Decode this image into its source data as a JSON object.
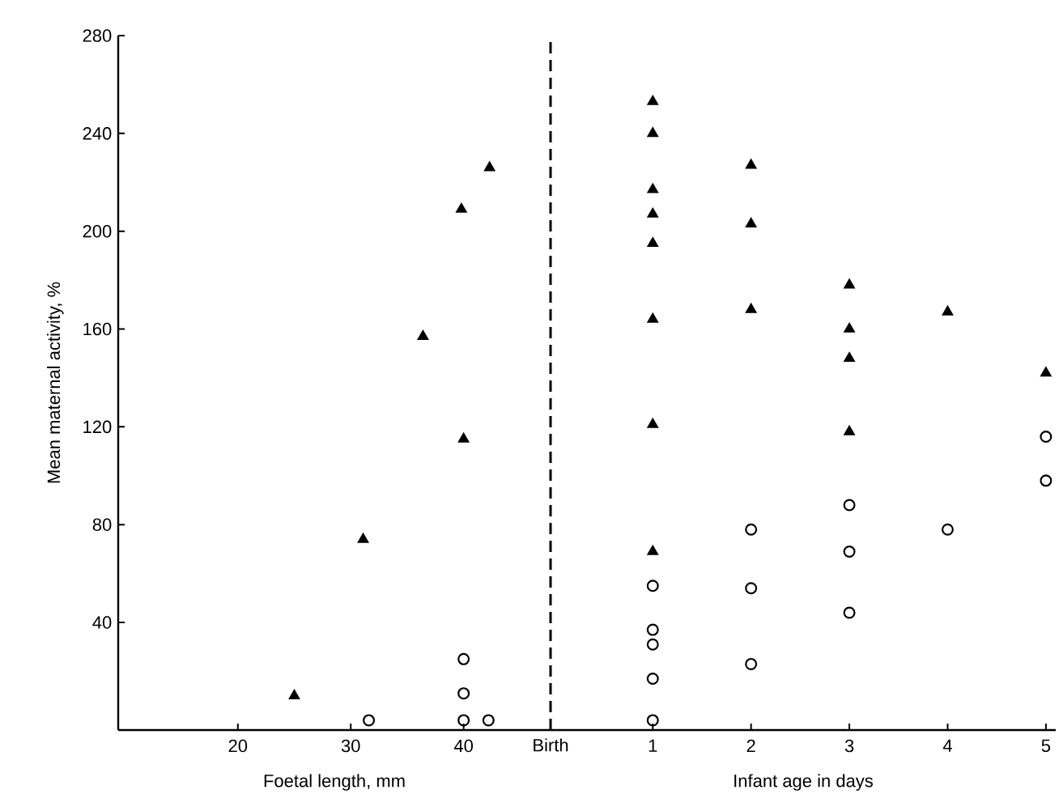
{
  "chart_data": [
    {
      "type": "scatter",
      "xlabel": "Foetal length, mm",
      "ylabel": "Mean maternal activity, %",
      "xlim": [
        9.4,
        47.7
      ],
      "xticks": [
        20,
        30,
        40
      ],
      "ylim": [
        -4,
        280
      ],
      "yticks": [
        40,
        80,
        120,
        160,
        200,
        240,
        280
      ],
      "ref_lines": [
        {
          "axis": "x",
          "value": 47.7,
          "label": "Birth",
          "line_style": "dashed",
          "color": "#000000"
        }
      ],
      "series": [
        {
          "color": "#000000",
          "marker": "triangle",
          "x": [
            25,
            31.1,
            36.4,
            40,
            39.8,
            42.3
          ],
          "values": [
            10,
            74,
            157,
            115,
            209,
            226
          ]
        },
        {
          "color": "#000000",
          "marker": "circle",
          "x": [
            31.6,
            40,
            40,
            40,
            42.2
          ],
          "values": [
            0,
            25,
            11,
            0,
            0
          ]
        }
      ]
    },
    {
      "type": "scatter",
      "xlabel": "Infant age in days",
      "xlim": [
        -0.04,
        5.1
      ],
      "xticks": [
        1,
        2,
        3,
        4,
        5
      ],
      "ylim": [
        -4,
        280
      ],
      "tick_labels": "x",
      "series": [
        {
          "color": "#000000",
          "marker": "triangle",
          "x": [
            1,
            1,
            1,
            1,
            1,
            1,
            1,
            1,
            2,
            2,
            2,
            3,
            3,
            3,
            3,
            4,
            5
          ],
          "values": [
            253,
            240,
            217,
            207,
            195,
            164,
            121,
            69,
            227,
            203,
            168,
            178,
            160,
            148,
            118,
            167,
            142
          ]
        },
        {
          "color": "#000000",
          "marker": "circle",
          "x": [
            1,
            1,
            1,
            1,
            1,
            2,
            2,
            2,
            3,
            3,
            3,
            4,
            5,
            5
          ],
          "values": [
            55,
            37,
            31,
            17,
            0,
            78,
            54,
            23,
            88,
            69,
            44,
            78,
            116,
            98
          ]
        }
      ]
    }
  ]
}
